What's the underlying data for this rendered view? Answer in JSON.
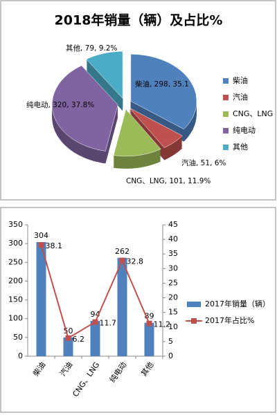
{
  "chart_data": [
    {
      "type": "pie",
      "title": "2018年销量（辆）及占比%",
      "categories": [
        "柴油",
        "汽油",
        "CNG、LNG",
        "纯电动",
        "其他"
      ],
      "values": [
        298,
        51,
        101,
        320,
        79
      ],
      "data_labels": [
        "柴油, 298, 35.1",
        "汽油, 51, 6%",
        "CNG、LNG, 101, 11.9%",
        "纯电动, 320, 37.8%",
        "其他, 79, 9.2%"
      ],
      "colors": [
        "#4f81bd",
        "#c0504d",
        "#9bbb59",
        "#8064a2",
        "#4bacc6"
      ],
      "legend": "right"
    },
    {
      "type": "bar-line",
      "categories": [
        "柴油",
        "汽油",
        "CNG、LNG",
        "纯电动",
        "其他"
      ],
      "series": [
        {
          "name": "2017年销量（辆）",
          "color": "#4f81bd",
          "type": "bar",
          "values": [
            304,
            50,
            94,
            262,
            89
          ]
        },
        {
          "name": "2017年占比%",
          "color": "#c0504d",
          "type": "line",
          "axis": "y2",
          "values": [
            38.1,
            6.2,
            11.7,
            32.8,
            11.2
          ]
        }
      ],
      "ylim": [
        0,
        350
      ],
      "yticks": [
        0,
        50,
        100,
        150,
        200,
        250,
        300,
        350
      ],
      "y2lim": [
        0,
        45
      ],
      "y2ticks": [
        0,
        5,
        10,
        15,
        20,
        25,
        30,
        35,
        40,
        45
      ],
      "legend": "right"
    }
  ]
}
